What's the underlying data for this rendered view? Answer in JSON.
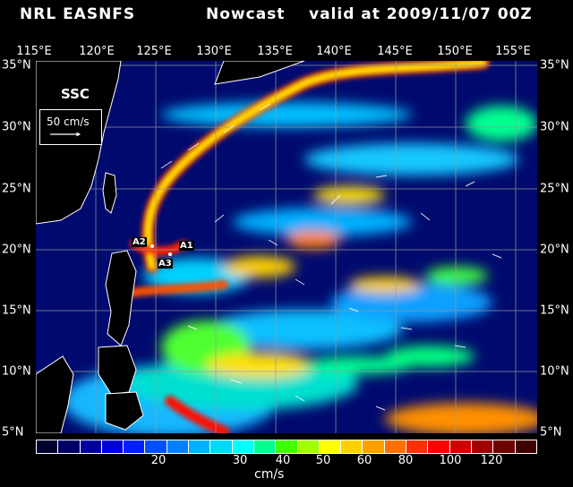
{
  "header": {
    "model": "NRL EASNFS",
    "run_type": "Nowcast",
    "valid_text": "valid at 2009/11/07 00Z"
  },
  "map": {
    "field_label": "SSC",
    "reference_vector_label": "50 cm/s",
    "longitude_labels": [
      "115°E",
      "120°E",
      "125°E",
      "130°E",
      "135°E",
      "140°E",
      "145°E",
      "150°E",
      "155°E"
    ],
    "latitude_labels": [
      "35°N",
      "30°N",
      "25°N",
      "20°N",
      "15°N",
      "10°N",
      "5°N"
    ],
    "station_labels": [
      "A1",
      "A2",
      "A3"
    ],
    "colors": {
      "land": "#000000",
      "coastline": "#ffffff",
      "gridline": "#9a9a9a"
    }
  },
  "colorbar": {
    "unit": "cm/s",
    "tick_labels": [
      "20",
      "30",
      "40",
      "50",
      "60",
      "80",
      "100",
      "120"
    ],
    "colors": [
      "#000030",
      "#000066",
      "#0000a0",
      "#0000d8",
      "#0020ff",
      "#0050ff",
      "#0080ff",
      "#00b0ff",
      "#00d8ff",
      "#00ffff",
      "#00ff90",
      "#40ff00",
      "#a0ff00",
      "#ffff00",
      "#ffd000",
      "#ffa000",
      "#ff7000",
      "#ff3000",
      "#ff0000",
      "#d00000",
      "#a00000",
      "#700000",
      "#400000"
    ]
  }
}
